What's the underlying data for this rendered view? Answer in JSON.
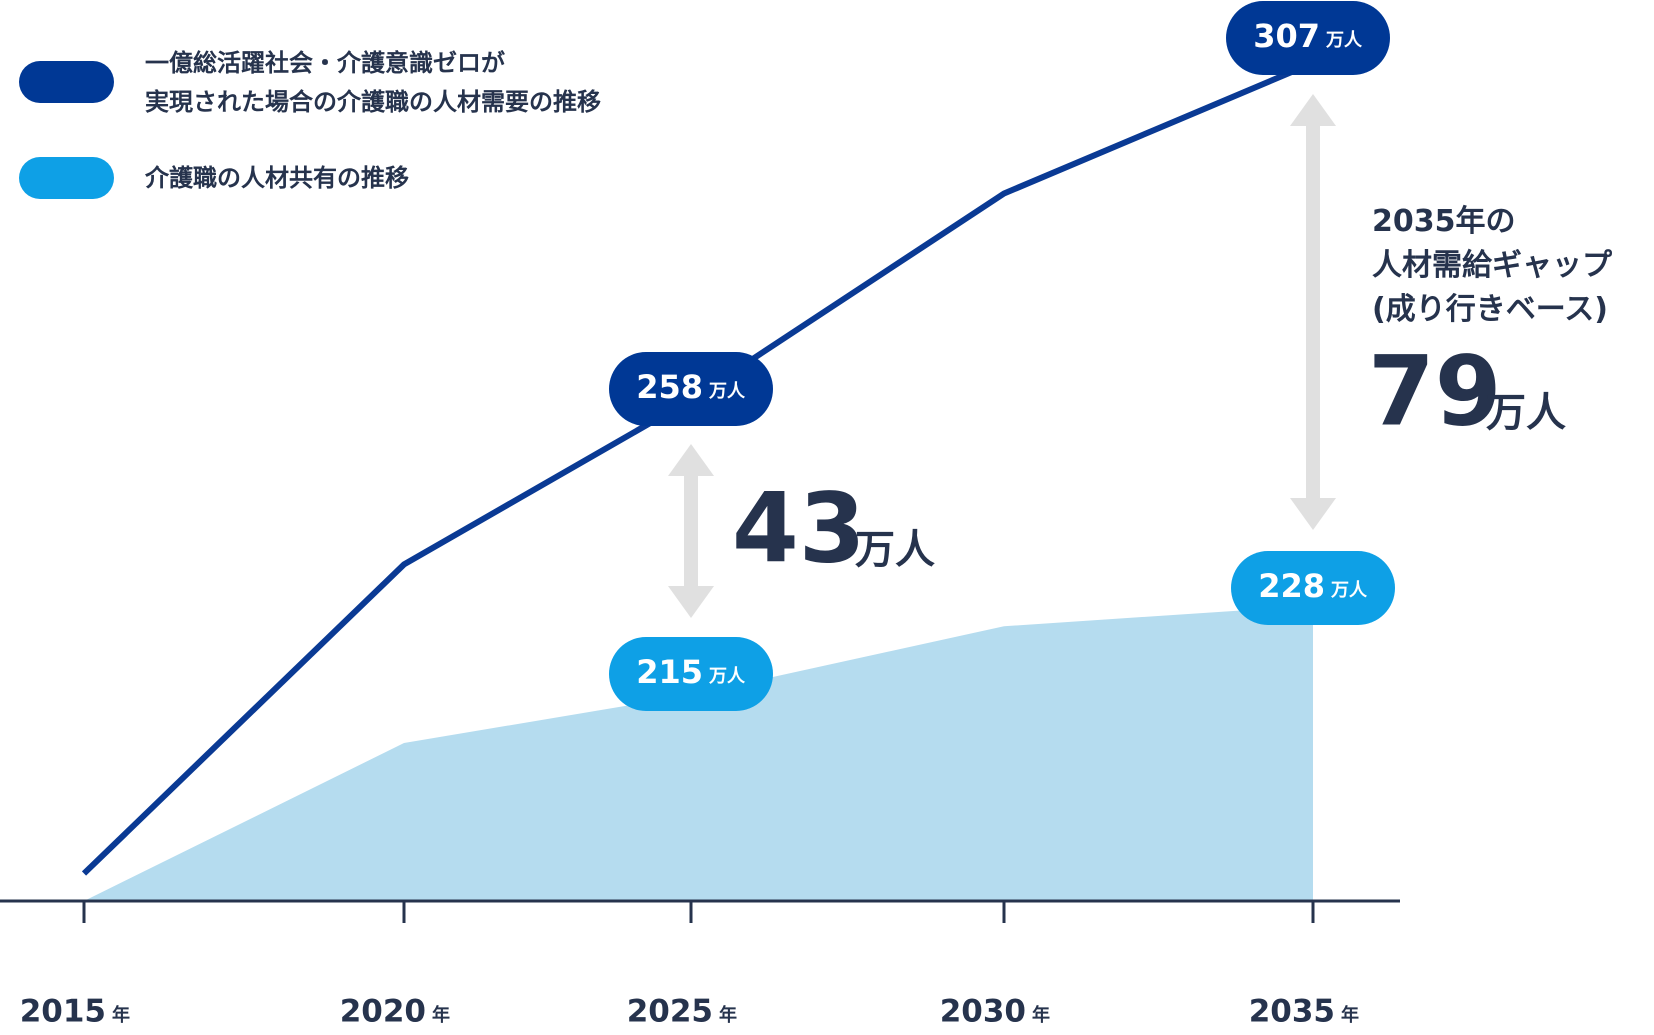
{
  "chart_data": {
    "type": "line-area",
    "categories": [
      "2015",
      "2020",
      "2025",
      "2030",
      "2035"
    ],
    "x_unit": "年",
    "unit": "万人",
    "series": [
      {
        "name": "一億総活躍社会・介護意識ゼロが\n実現された場合の介護職の人材需要の推移",
        "color": "#0a3a94",
        "label_color": "#003895",
        "values": [
          189,
          234,
          258,
          288,
          307
        ],
        "labeled": [
          2,
          4
        ]
      },
      {
        "name": "介護職の人材共有の推移",
        "color": "#b5dcef",
        "label_color": "#0ea0e6",
        "values": [
          185,
          208,
          215,
          225,
          228
        ],
        "labeled": [
          2,
          4
        ]
      }
    ],
    "annotations": [
      {
        "value": 43,
        "unit": "万人"
      },
      {
        "text": "2035年の\n人材需給ギャップ\n(成り行きベース)",
        "value": 79,
        "unit": "万人"
      }
    ]
  }
}
